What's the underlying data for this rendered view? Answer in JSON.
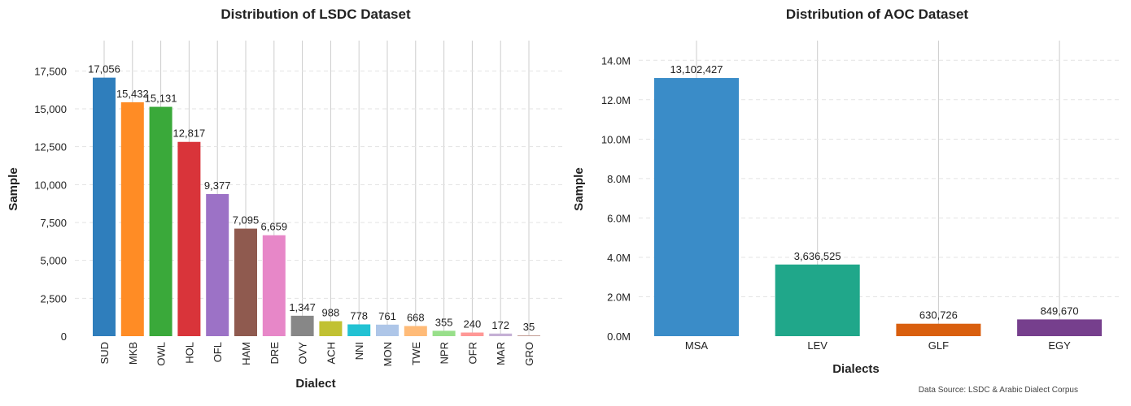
{
  "source_note": "Data Source: LSDC & Arabic Dialect Corpus",
  "chart_data": [
    {
      "type": "bar",
      "title": "Distribution of LSDC Dataset",
      "xlabel": "Dialect",
      "ylabel": "Sample",
      "ylim": [
        0,
        19500
      ],
      "yticks": [
        0,
        2500,
        5000,
        7500,
        10000,
        12500,
        15000,
        17500
      ],
      "ytick_labels": [
        "0",
        "2,500",
        "5,000",
        "7,500",
        "10,000",
        "12,500",
        "15,000",
        "17,500"
      ],
      "categories": [
        "SUD",
        "MKB",
        "OWL",
        "HOL",
        "OFL",
        "HAM",
        "DRE",
        "OVY",
        "ACH",
        "NNI",
        "MON",
        "TWE",
        "NPR",
        "OFR",
        "MAR",
        "GRO"
      ],
      "values": [
        17056,
        15432,
        15131,
        12817,
        9377,
        7095,
        6659,
        1347,
        988,
        778,
        761,
        668,
        355,
        240,
        172,
        35
      ],
      "value_labels": [
        "17,056",
        "15,432",
        "15,131",
        "12,817",
        "9,377",
        "7,095",
        "6,659",
        "1,347",
        "988",
        "778",
        "761",
        "668",
        "355",
        "240",
        "172",
        "35"
      ],
      "colors": [
        "#2f7ebc",
        "#ff8c25",
        "#3aa93a",
        "#d9343a",
        "#9c72c6",
        "#8f5a4f",
        "#e787c8",
        "#878787",
        "#c1c132",
        "#22c2d3",
        "#aec6e8",
        "#ffbb78",
        "#98df8a",
        "#ff9896",
        "#c5b0d5",
        "#c49c94"
      ],
      "grid": "y-dashed, x-at-categories",
      "x_tick_rotation": "vertical"
    },
    {
      "type": "bar",
      "title": "Distribution of AOC Dataset",
      "xlabel": "Dialects",
      "ylabel": "Sample",
      "ylim": [
        0,
        15000000
      ],
      "yticks": [
        0,
        2000000,
        4000000,
        6000000,
        8000000,
        10000000,
        12000000,
        14000000
      ],
      "ytick_labels": [
        "0.0M",
        "2.0M",
        "4.0M",
        "6.0M",
        "8.0M",
        "10.0M",
        "12.0M",
        "14.0M"
      ],
      "categories": [
        "MSA",
        "LEV",
        "GLF",
        "EGY"
      ],
      "values": [
        13102427,
        3636525,
        630726,
        849670
      ],
      "value_labels": [
        "13,102,427",
        "3,636,525",
        "630,726",
        "849,670"
      ],
      "colors": [
        "#3a8cc8",
        "#20a78a",
        "#d95f0e",
        "#763f8d"
      ],
      "label_colors": [
        "#2a7fb8",
        "#16a085",
        "#d35400",
        "#6c3483"
      ],
      "grid": "y-dashed, x-at-categories"
    }
  ]
}
